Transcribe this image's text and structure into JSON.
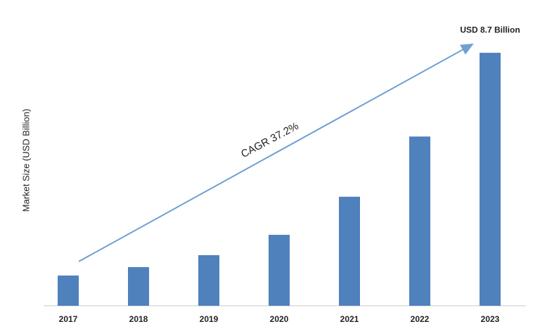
{
  "chart_data": {
    "type": "bar",
    "y_label": "Market Size (USD Billion)",
    "categories": [
      "2017",
      "2018",
      "2019",
      "2020",
      "2021",
      "2022",
      "2023"
    ],
    "values": [
      1.04,
      1.33,
      1.74,
      2.44,
      3.75,
      5.82,
      8.7
    ],
    "value_labels": [
      null,
      null,
      null,
      null,
      null,
      null,
      "USD 8.7 Billion"
    ],
    "color": "#4f81bd",
    "ylim": [
      0,
      9.5
    ],
    "annotation": "CAGR 37.2%"
  }
}
